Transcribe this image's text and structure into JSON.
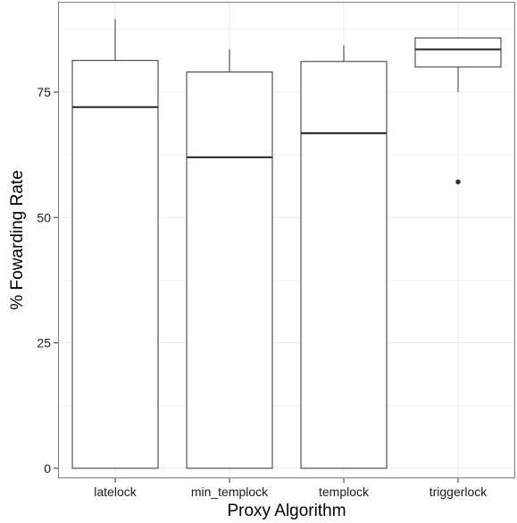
{
  "chart_data": {
    "type": "box",
    "xlabel": "Proxy Algorithm",
    "ylabel": "% Fowarding Rate",
    "categories": [
      "latelock",
      "min_templock",
      "templock",
      "triggerlock"
    ],
    "ylim": [
      -2,
      93
    ],
    "yticks": [
      0,
      25,
      50,
      75
    ],
    "ytick_labels": [
      "0",
      "25",
      "50",
      "75"
    ],
    "grid": true,
    "boxes": [
      {
        "category": "latelock",
        "lower_whisker": 0,
        "q1": 0,
        "median": 72,
        "q3": 81.3,
        "upper_whisker": 89.5,
        "outliers": []
      },
      {
        "category": "min_templock",
        "lower_whisker": 0,
        "q1": 0,
        "median": 62,
        "q3": 79,
        "upper_whisker": 83.5,
        "outliers": []
      },
      {
        "category": "templock",
        "lower_whisker": 0,
        "q1": 0,
        "median": 66.8,
        "q3": 81.1,
        "upper_whisker": 84.3,
        "outliers": []
      },
      {
        "category": "triggerlock",
        "lower_whisker": 75,
        "q1": 80,
        "median": 83.5,
        "q3": 85.8,
        "upper_whisker": 85.8,
        "outliers": [
          57.1
        ]
      }
    ],
    "colors": {
      "box_fill": "#ffffff",
      "box_stroke": "#333333",
      "median": "#333333",
      "grid": "#ebebeb",
      "panel_border": "#7f7f7f"
    }
  }
}
